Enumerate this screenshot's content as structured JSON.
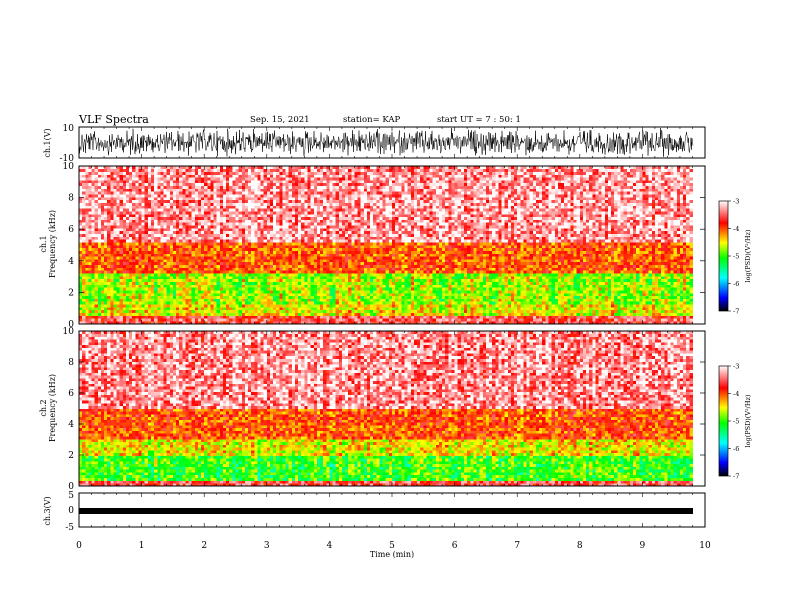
{
  "header": {
    "title": "VLF  Spectra",
    "date": "Sep. 15, 2021",
    "station": "station= KAP",
    "start": "start  UT =   7 : 50: 1"
  },
  "chart_data": [
    {
      "type": "line",
      "name": "ch1-waveform",
      "ylabel": "ch.1(V)",
      "ylim": [
        -10,
        10
      ],
      "yticks": [
        "10",
        "-10"
      ],
      "xlim": [
        0,
        10
      ]
    },
    {
      "type": "heatmap",
      "name": "ch1-spectrogram",
      "ylabel_top": "ch.1",
      "ylabel": "Frequency  (kHz)",
      "ylim": [
        0,
        10
      ],
      "yticks": [
        "0",
        "2",
        "4",
        "6",
        "8",
        "10"
      ],
      "xlim": [
        0,
        9.8
      ],
      "colorbar": {
        "label": "log(PSD)(V²/Hz)",
        "range": [
          -7,
          -3
        ],
        "ticks": [
          "-3",
          "-4",
          "-5",
          "-6",
          "-7"
        ]
      }
    },
    {
      "type": "heatmap",
      "name": "ch2-spectrogram",
      "ylabel_top": "ch.2",
      "ylabel": "Frequency  (kHz)",
      "ylim": [
        0,
        10
      ],
      "yticks": [
        "0",
        "2",
        "4",
        "6",
        "8",
        "10"
      ],
      "xlim": [
        0,
        9.8
      ],
      "colorbar": {
        "label": "log(PSD)(V²/Hz)",
        "range": [
          -7,
          -3
        ],
        "ticks": [
          "-3",
          "-4",
          "-5",
          "-6",
          "-7"
        ]
      }
    },
    {
      "type": "line",
      "name": "ch3-waveform",
      "ylabel": "ch.3(V)",
      "ylim": [
        -5,
        5
      ],
      "yticks": [
        "5",
        "0",
        "-5"
      ],
      "xlim": [
        0,
        10
      ],
      "xlabel": "Time  (min)",
      "xticks": [
        "0",
        "1",
        "2",
        "3",
        "4",
        "5",
        "6",
        "7",
        "8",
        "9",
        "10"
      ]
    }
  ],
  "colors": {
    "axis": "#000000",
    "high": "#ff0000",
    "mid": "#ffff00",
    "low": "#00ff00",
    "floor": "#ffffff"
  }
}
